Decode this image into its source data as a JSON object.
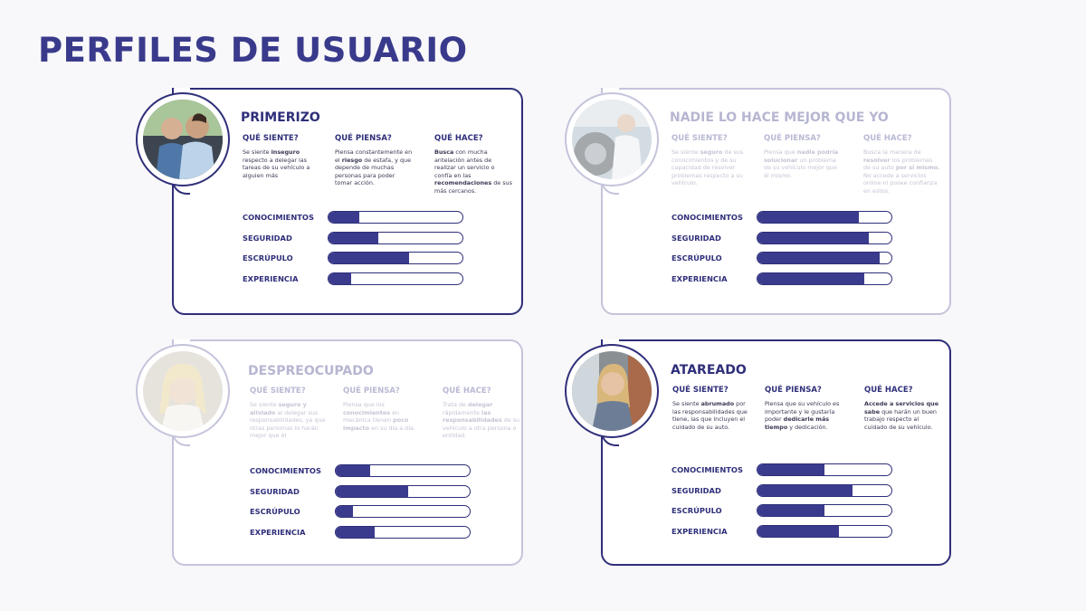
{
  "page": {
    "title": "PERFILES DE USUARIO"
  },
  "columns": {
    "siente": "QUÉ SIENTE?",
    "piensa": "QUÉ PIENSA?",
    "hace": "QUÉ HACE?"
  },
  "metric_labels": [
    "CONOCIMIENTOS",
    "SEGURIDAD",
    "ESCRÚPULO",
    "EXPERIENCIA"
  ],
  "profiles": [
    {
      "name": "PRIMERIZO",
      "state": "active",
      "photo": "photo-two-men-in-car",
      "siente": [
        {
          "t": "Se siente "
        },
        {
          "t": "inseguro",
          "b": true
        },
        {
          "t": " respecto a delegar las tareas de su vehículo a alguien más"
        }
      ],
      "piensa": [
        {
          "t": "Piensa constantemente en el "
        },
        {
          "t": "riesgo",
          "b": true
        },
        {
          "t": " de estafa, y que depende de muchas personas para poder tomar acción."
        }
      ],
      "hace": [
        {
          "t": "Busca",
          "b": true
        },
        {
          "t": " con mucha antelación antes de realizar un servicio o confía en las "
        },
        {
          "t": "recomendaciones",
          "b": true
        },
        {
          "t": " de sus más cercanos."
        }
      ],
      "metrics": [
        0.23,
        0.37,
        0.6,
        0.17
      ]
    },
    {
      "name": "NADIE LO HACE MEJOR QUE YO",
      "state": "faded",
      "photo": "photo-man-with-car-wheel",
      "siente": [
        {
          "t": "Se siente "
        },
        {
          "t": "seguro",
          "b": true
        },
        {
          "t": " de sus conocimientos y de su capacidad de resolver problemas respecto a su vehículo."
        }
      ],
      "piensa": [
        {
          "t": "Piensa que "
        },
        {
          "t": "nadie podría solucionar",
          "b": true
        },
        {
          "t": " un problema de su vehículo mejor que él mismo."
        }
      ],
      "hace": [
        {
          "t": "Busca la manera de "
        },
        {
          "t": "resolver",
          "b": true
        },
        {
          "t": " los problemas de su auto "
        },
        {
          "t": "por sí mismo.",
          "b": true
        },
        {
          "t": " No accede a servicios online ni posee confianza en estos."
        }
      ],
      "metrics": [
        0.76,
        0.83,
        0.91,
        0.8
      ]
    },
    {
      "name": "DESPREOCUPADO",
      "state": "faded",
      "photo": "photo-woman-relaxed",
      "siente": [
        {
          "t": "Se siente "
        },
        {
          "t": "seguro y aliviado",
          "b": true
        },
        {
          "t": " al delegar sus responsabilidades, ya que otras personas lo harán mejor que él"
        }
      ],
      "piensa": [
        {
          "t": "Piensa que los "
        },
        {
          "t": "conocimientos",
          "b": true
        },
        {
          "t": " en mecánica tienen "
        },
        {
          "t": "poco impacto",
          "b": true
        },
        {
          "t": " en su día a día."
        }
      ],
      "hace": [
        {
          "t": "Trata de "
        },
        {
          "t": "delegar",
          "b": true
        },
        {
          "t": " rápidamente "
        },
        {
          "t": "las responsabilidades",
          "b": true
        },
        {
          "t": " de su vehículo a otra persona o entidad."
        }
      ],
      "metrics": [
        0.26,
        0.54,
        0.13,
        0.29
      ]
    },
    {
      "name": "ATAREADO",
      "state": "active",
      "photo": "photo-smiling-woman-in-car",
      "siente": [
        {
          "t": "Se siente "
        },
        {
          "t": "abrumado",
          "b": true
        },
        {
          "t": " por las responsabilidades que tiene, las que incluyen el cuidado de su auto."
        }
      ],
      "piensa": [
        {
          "t": "Piensa que su vehículo es importante y le gustaría poder "
        },
        {
          "t": "dedicarle más tiempo",
          "b": true
        },
        {
          "t": " y dedicación."
        }
      ],
      "hace": [
        {
          "t": "Accede a servicios que sabe",
          "b": true
        },
        {
          "t": " que harán un buen trabajo respecto al cuidado de su vehículo."
        }
      ],
      "metrics": [
        0.5,
        0.71,
        0.5,
        0.61
      ]
    }
  ],
  "colors": {
    "primary": "#2f2f7a",
    "bar_fill": "#3b3b8e",
    "faded": "#c4c4dc",
    "background": "#f8f8fa"
  }
}
